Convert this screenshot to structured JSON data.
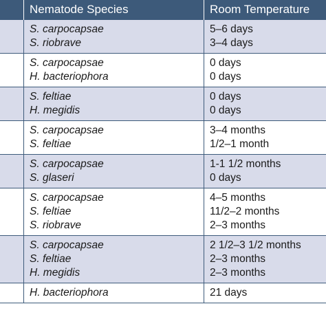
{
  "header": {
    "col0": "",
    "species": "Nematode Species",
    "temperature": "Room Temperature"
  },
  "rows": [
    {
      "species": [
        "S. carpocapsae",
        "S. riobrave"
      ],
      "temperature": [
        "5–6 days",
        "3–4 days"
      ],
      "shaded": true
    },
    {
      "species": [
        "S. carpocapsae",
        "H. bacteriophora"
      ],
      "temperature": [
        "0 days",
        "0 days"
      ],
      "shaded": false
    },
    {
      "species": [
        "S. feltiae",
        "H. megidis"
      ],
      "temperature": [
        "0 days",
        "0 days"
      ],
      "shaded": true
    },
    {
      "species": [
        "S. carpocapsae",
        "S. feltiae"
      ],
      "temperature": [
        "3–4 months",
        "1/2–1 month"
      ],
      "shaded": false
    },
    {
      "species": [
        "S. carpocapsae",
        "S. glaseri"
      ],
      "temperature": [
        "1-1 1/2 months",
        "0 days"
      ],
      "shaded": true
    },
    {
      "species": [
        "S. carpocapsae",
        "S. feltiae",
        "S. riobrave"
      ],
      "temperature": [
        "4–5 months",
        "11/2–2 months",
        "2–3 months"
      ],
      "shaded": false
    },
    {
      "species": [
        "S. carpocapsae",
        "S. feltiae",
        "H. megidis"
      ],
      "temperature": [
        "2 1/2–3 1/2 months",
        "2–3 months",
        "2–3 months"
      ],
      "shaded": true
    },
    {
      "species": [
        "H. bacteriophora"
      ],
      "temperature": [
        "21 days"
      ],
      "shaded": false
    }
  ]
}
